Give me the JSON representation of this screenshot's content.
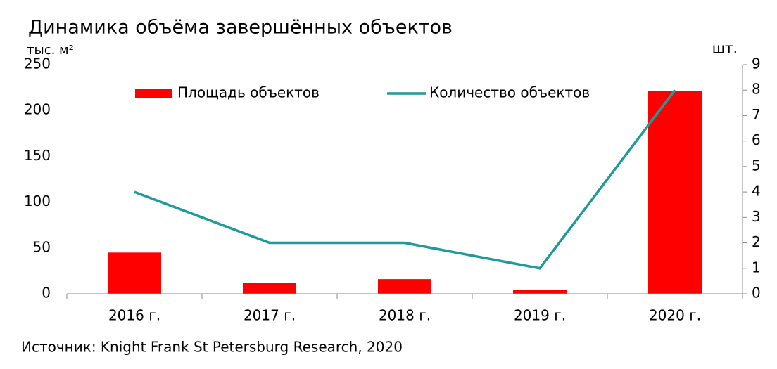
{
  "chart_data": {
    "type": "bar_line",
    "title": "Динамика объёма завершённых объектов",
    "y_label": "тыс. м²",
    "y2_label": "шт.",
    "source": "Источник: Knight Frank St Petersburg Research, 2020",
    "categories": [
      "2016 г.",
      "2017 г.",
      "2018 г.",
      "2019 г.",
      "2020 г."
    ],
    "series": [
      {
        "name": "Площадь объектов",
        "color": "#ff0000",
        "type": "bar",
        "values": [
          45,
          12,
          16,
          4,
          221
        ]
      },
      {
        "name": "Количество объектов",
        "color": "#1f9a9a",
        "type": "line",
        "axis": "y2",
        "values": [
          4,
          2,
          2,
          1,
          8
        ]
      }
    ],
    "ylim": [
      0,
      250
    ],
    "yticks": [
      0,
      50,
      100,
      150,
      200,
      250
    ],
    "y2lim": [
      0,
      9
    ],
    "y2ticks": [
      0,
      1,
      2,
      3,
      4,
      5,
      6,
      7,
      8,
      9
    ],
    "legend": "top"
  }
}
